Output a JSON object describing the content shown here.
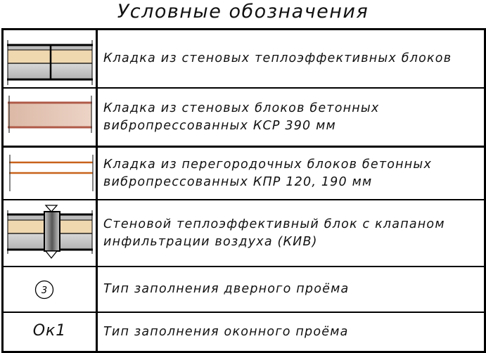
{
  "title": "Условные обозначения",
  "colors": {
    "insulation": "#efd7b0",
    "block_gray": "#c4c4c4",
    "ksr_fill": "#e3c2b2",
    "ksr_line": "#b05a48",
    "kpr_line": "#c8621a"
  },
  "rows": [
    {
      "symbol": "thermal-block-wall-icon",
      "lines": [
        "Кладка из стеновых теплоэффективных блоков"
      ]
    },
    {
      "symbol": "ksr-block-wall-icon",
      "lines": [
        "Кладка из стеновых блоков бетонных",
        "вибропрессованных КСР 390 мм"
      ]
    },
    {
      "symbol": "kpr-partition-wall-icon",
      "lines": [
        "Кладка из перегородочных блоков бетонных",
        "вибропрессованных КПР 120, 190 мм"
      ]
    },
    {
      "symbol": "kiv-valve-block-icon",
      "lines": [
        "Стеновой теплоэффективный блок с клапаном",
        "инфильтрации воздуха (КИВ)"
      ]
    },
    {
      "symbol": "door-type-marker-icon",
      "marker": "3",
      "lines": [
        "Тип заполнения дверного проёма"
      ]
    },
    {
      "symbol": "window-type-marker",
      "marker": "Ок1",
      "lines": [
        "Тип заполнения оконного проёма"
      ]
    }
  ]
}
